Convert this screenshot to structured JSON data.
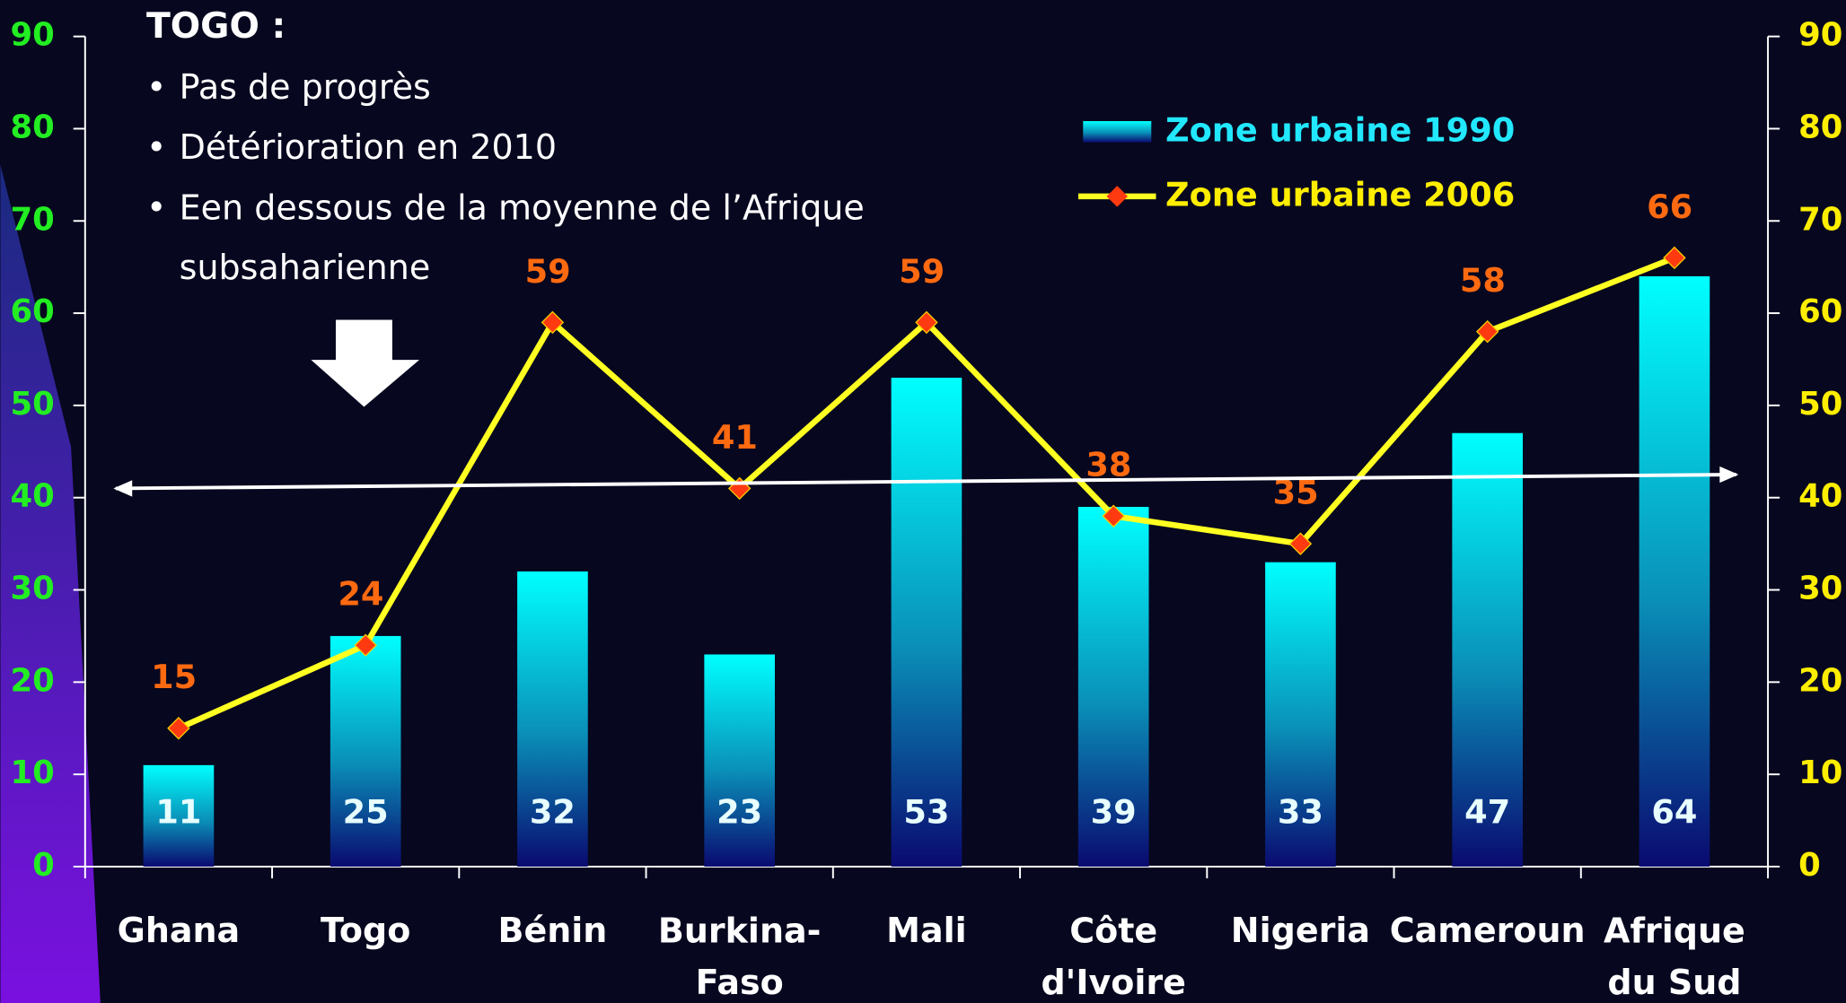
{
  "chart_data": {
    "type": "bar-line",
    "annotations": {
      "heading": "TOGO :",
      "bullets": [
        "Pas de progrès",
        "Détérioration en 2010",
        "Een dessous de la moyenne de l’Afrique subsaharienne"
      ]
    },
    "categories": [
      "Ghana",
      "Togo",
      "Bénin",
      "Burkina-Faso",
      "Mali",
      "Côte d'Ivoire",
      "Nigeria",
      "Cameroun",
      "Afrique du Sud"
    ],
    "series": [
      {
        "name": "Zone urbaine 1990",
        "type": "bar",
        "color": "#00f0f0",
        "values": [
          11,
          25,
          32,
          23,
          53,
          39,
          33,
          47,
          64
        ]
      },
      {
        "name": "Zone urbaine 2006",
        "type": "line",
        "axis": "y2",
        "color": "#ffff22",
        "marker_color": "#ff3a10",
        "label_color": "#ff6a10",
        "values": [
          15,
          24,
          59,
          41,
          59,
          38,
          35,
          58,
          66
        ]
      }
    ],
    "reference_line": [
      41,
      42.5
    ],
    "ylim": [
      0,
      90
    ],
    "yticks": [
      0,
      10,
      20,
      30,
      40,
      50,
      60,
      70,
      80,
      90
    ],
    "y2lim": [
      0,
      90
    ],
    "y2ticks": [
      0,
      10,
      20,
      30,
      40,
      50,
      60,
      70,
      80,
      90
    ],
    "grid": false,
    "legend": "upper right"
  }
}
